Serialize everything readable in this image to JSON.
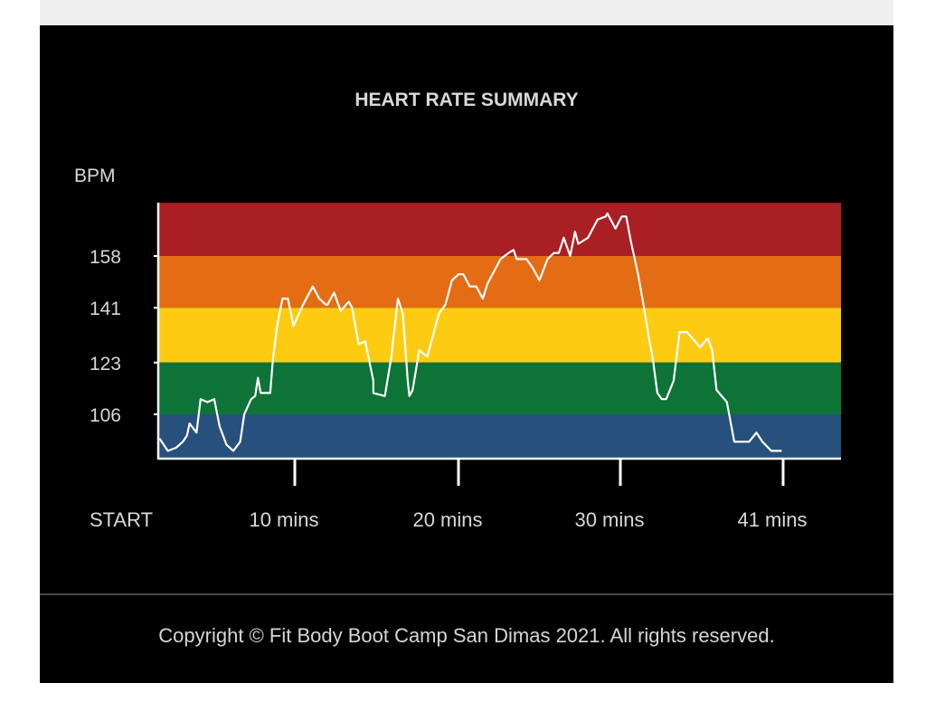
{
  "footer": {
    "copyright": "Copyright © Fit Body Boot Camp San Dimas 2021. All rights reserved."
  },
  "chart_data": {
    "type": "line",
    "title": "HEART RATE SUMMARY",
    "ylabel": "BPM",
    "xlabel": "",
    "ylim": [
      91.5,
      175.5
    ],
    "xlim": [
      0,
      41
    ],
    "grid": false,
    "yticks": [
      {
        "value": 158,
        "label": "158"
      },
      {
        "value": 141,
        "label": "141"
      },
      {
        "value": 123,
        "label": "123"
      },
      {
        "value": 106,
        "label": "106"
      }
    ],
    "xticks": [
      {
        "value": 0,
        "label": "START"
      },
      {
        "value": 10,
        "label": "10 mins"
      },
      {
        "value": 20,
        "label": "20 mins"
      },
      {
        "value": 30,
        "label": "30 mins"
      },
      {
        "value": 41,
        "label": "41 mins"
      }
    ],
    "zones": [
      {
        "from": 158,
        "to": 175.5,
        "color": "#a91f23"
      },
      {
        "from": 141,
        "to": 158,
        "color": "#e46c14"
      },
      {
        "from": 123,
        "to": 141,
        "color": "#fdcc12"
      },
      {
        "from": 106,
        "to": 123,
        "color": "#0d7337"
      },
      {
        "from": 91.5,
        "to": 106,
        "color": "#27507d"
      }
    ],
    "line_color": "#ffffff",
    "series": [
      {
        "points": [
          [
            0.1,
            98
          ],
          [
            0.7,
            94
          ],
          [
            1.3,
            95
          ],
          [
            1.8,
            97
          ],
          [
            2.1,
            99
          ],
          [
            2.3,
            103
          ],
          [
            2.8,
            100
          ],
          [
            3.1,
            111
          ],
          [
            3.6,
            110
          ],
          [
            4.1,
            111
          ],
          [
            4.5,
            102
          ],
          [
            5.0,
            96
          ],
          [
            5.5,
            94
          ],
          [
            6.0,
            97
          ],
          [
            6.3,
            106
          ],
          [
            6.8,
            111
          ],
          [
            7.1,
            112
          ],
          [
            7.3,
            118
          ],
          [
            7.5,
            113
          ],
          [
            8.2,
            113
          ],
          [
            8.4,
            124
          ],
          [
            8.7,
            135
          ],
          [
            9.1,
            144
          ],
          [
            9.5,
            144
          ],
          [
            9.9,
            135
          ],
          [
            10.5,
            142
          ],
          [
            11.1,
            148
          ],
          [
            11.5,
            144
          ],
          [
            11.9,
            142
          ],
          [
            12.0,
            142
          ],
          [
            12.4,
            146
          ],
          [
            12.8,
            140
          ],
          [
            13.3,
            143
          ],
          [
            13.5,
            141
          ],
          [
            13.9,
            129
          ],
          [
            14.3,
            130
          ],
          [
            14.8,
            117
          ],
          [
            14.8,
            113
          ],
          [
            15.5,
            112
          ],
          [
            15.9,
            125
          ],
          [
            16.3,
            144
          ],
          [
            16.6,
            139
          ],
          [
            16.9,
            117
          ],
          [
            17.0,
            112
          ],
          [
            17.2,
            114
          ],
          [
            17.6,
            127
          ],
          [
            18.1,
            125
          ],
          [
            18.8,
            139
          ],
          [
            19.2,
            142
          ],
          [
            19.6,
            150
          ],
          [
            20.0,
            152
          ],
          [
            20.3,
            152
          ],
          [
            20.7,
            148
          ],
          [
            21.1,
            148
          ],
          [
            21.5,
            144
          ],
          [
            21.8,
            149
          ],
          [
            22.4,
            155
          ],
          [
            22.6,
            157
          ],
          [
            23.1,
            159
          ],
          [
            23.4,
            160
          ],
          [
            23.6,
            157
          ],
          [
            24.2,
            157
          ],
          [
            24.6,
            154
          ],
          [
            25.0,
            150
          ],
          [
            25.5,
            157
          ],
          [
            25.9,
            159
          ],
          [
            26.2,
            159
          ],
          [
            26.5,
            164
          ],
          [
            26.9,
            158
          ],
          [
            27.2,
            166
          ],
          [
            27.4,
            162
          ],
          [
            28.0,
            164
          ],
          [
            28.6,
            170
          ],
          [
            29.1,
            171
          ],
          [
            29.2,
            172
          ],
          [
            29.7,
            167
          ],
          [
            30.1,
            171
          ],
          [
            30.4,
            171
          ],
          [
            30.7,
            163
          ],
          [
            31.2,
            152
          ],
          [
            31.6,
            141
          ],
          [
            31.9,
            132
          ],
          [
            32.2,
            124
          ],
          [
            32.5,
            113
          ],
          [
            32.8,
            111
          ],
          [
            33.1,
            111
          ],
          [
            33.6,
            117
          ],
          [
            34.0,
            133
          ],
          [
            34.5,
            133
          ],
          [
            35.4,
            128
          ],
          [
            35.9,
            131
          ],
          [
            36.2,
            127
          ],
          [
            36.5,
            114
          ],
          [
            37.2,
            110
          ],
          [
            37.7,
            97
          ],
          [
            38.4,
            97
          ],
          [
            38.7,
            97
          ],
          [
            39.2,
            100
          ],
          [
            39.6,
            97
          ],
          [
            40.2,
            94
          ],
          [
            40.9,
            94
          ]
        ]
      }
    ]
  }
}
